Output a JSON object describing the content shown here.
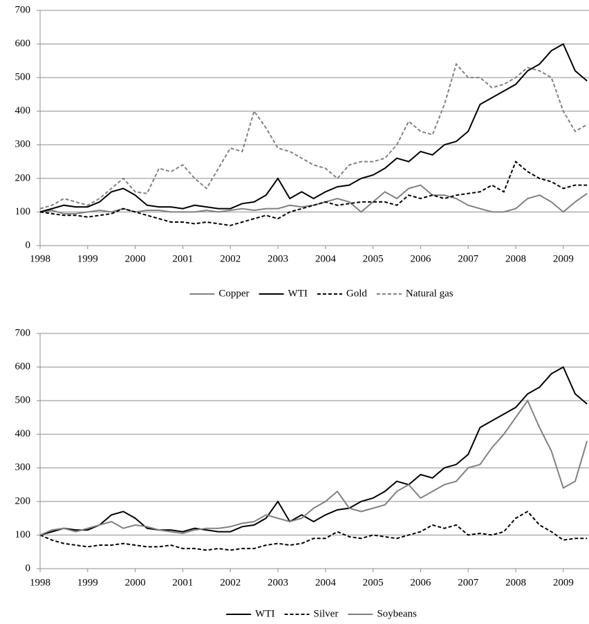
{
  "chart_data": [
    {
      "type": "line",
      "x": [
        1998,
        1998.25,
        1998.5,
        1998.75,
        1999,
        1999.25,
        1999.5,
        1999.75,
        2000,
        2000.25,
        2000.5,
        2000.75,
        2001,
        2001.25,
        2001.5,
        2001.75,
        2002,
        2002.25,
        2002.5,
        2002.75,
        2003,
        2003.25,
        2003.5,
        2003.75,
        2004,
        2004.25,
        2004.5,
        2004.75,
        2005,
        2005.25,
        2005.5,
        2005.75,
        2006,
        2006.25,
        2006.5,
        2006.75,
        2007,
        2007.25,
        2007.5,
        2007.75,
        2008,
        2008.25,
        2008.5,
        2008.75,
        2009,
        2009.25,
        2009.5
      ],
      "series": [
        {
          "name": "Copper",
          "color": "#808080",
          "dash": "solid",
          "values": [
            100,
            105,
            95,
            95,
            100,
            105,
            100,
            110,
            100,
            105,
            105,
            100,
            100,
            100,
            105,
            100,
            105,
            110,
            105,
            110,
            110,
            120,
            115,
            120,
            130,
            140,
            130,
            100,
            130,
            160,
            140,
            170,
            180,
            150,
            150,
            140,
            120,
            110,
            100,
            100,
            110,
            140,
            150,
            130,
            100,
            130,
            155
          ]
        },
        {
          "name": "WTI",
          "color": "#000000",
          "dash": "solid",
          "values": [
            100,
            110,
            120,
            115,
            115,
            130,
            160,
            170,
            150,
            120,
            115,
            115,
            110,
            120,
            115,
            110,
            110,
            125,
            130,
            150,
            200,
            140,
            160,
            140,
            160,
            175,
            180,
            200,
            210,
            230,
            260,
            250,
            280,
            270,
            300,
            310,
            340,
            420,
            440,
            460,
            480,
            520,
            540,
            580,
            600,
            520,
            490
          ]
        },
        {
          "name": "Gold",
          "color": "#000000",
          "dash": "dashed",
          "values": [
            100,
            95,
            90,
            90,
            85,
            90,
            95,
            110,
            100,
            90,
            80,
            70,
            70,
            65,
            70,
            65,
            60,
            70,
            80,
            90,
            80,
            100,
            110,
            120,
            130,
            120,
            125,
            130,
            130,
            130,
            120,
            150,
            140,
            150,
            140,
            150,
            155,
            160,
            180,
            160,
            250,
            220,
            200,
            190,
            170,
            180,
            180
          ]
        },
        {
          "name": "Natural gas",
          "color": "#808080",
          "dash": "dashed",
          "values": [
            110,
            120,
            140,
            130,
            120,
            140,
            170,
            200,
            160,
            155,
            230,
            220,
            240,
            200,
            170,
            230,
            290,
            280,
            400,
            350,
            290,
            280,
            260,
            240,
            230,
            200,
            240,
            250,
            250,
            260,
            300,
            370,
            340,
            330,
            420,
            540,
            500,
            500,
            470,
            480,
            500,
            530,
            520,
            500,
            400,
            340,
            360
          ]
        }
      ],
      "xlim": [
        1998,
        2009.54
      ],
      "ylim": [
        0,
        700
      ],
      "xticks": [
        1998,
        1999,
        2000,
        2001,
        2002,
        2003,
        2004,
        2005,
        2006,
        2007,
        2008,
        2009
      ],
      "yticks": [
        0,
        100,
        200,
        300,
        400,
        500,
        600,
        700
      ],
      "grid": true
    },
    {
      "type": "line",
      "x": [
        1998,
        1998.25,
        1998.5,
        1998.75,
        1999,
        1999.25,
        1999.5,
        1999.75,
        2000,
        2000.25,
        2000.5,
        2000.75,
        2001,
        2001.25,
        2001.5,
        2001.75,
        2002,
        2002.25,
        2002.5,
        2002.75,
        2003,
        2003.25,
        2003.5,
        2003.75,
        2004,
        2004.25,
        2004.5,
        2004.75,
        2005,
        2005.25,
        2005.5,
        2005.75,
        2006,
        2006.25,
        2006.5,
        2006.75,
        2007,
        2007.25,
        2007.5,
        2007.75,
        2008,
        2008.25,
        2008.5,
        2008.75,
        2009,
        2009.25,
        2009.5
      ],
      "series": [
        {
          "name": "WTI",
          "color": "#000000",
          "dash": "solid",
          "values": [
            100,
            110,
            120,
            115,
            115,
            130,
            160,
            170,
            150,
            120,
            115,
            115,
            110,
            120,
            115,
            110,
            110,
            125,
            130,
            150,
            200,
            140,
            160,
            140,
            160,
            175,
            180,
            200,
            210,
            230,
            260,
            250,
            280,
            270,
            300,
            310,
            340,
            420,
            440,
            460,
            480,
            520,
            540,
            580,
            600,
            520,
            490
          ]
        },
        {
          "name": "Silver",
          "color": "#000000",
          "dash": "dashed",
          "values": [
            100,
            85,
            75,
            70,
            65,
            70,
            70,
            75,
            70,
            65,
            65,
            70,
            60,
            60,
            55,
            60,
            55,
            60,
            60,
            70,
            75,
            70,
            75,
            90,
            90,
            110,
            95,
            90,
            100,
            95,
            90,
            100,
            110,
            130,
            120,
            130,
            100,
            105,
            100,
            110,
            150,
            170,
            130,
            110,
            85,
            90,
            90
          ]
        },
        {
          "name": "Soybeans",
          "color": "#808080",
          "dash": "solid",
          "values": [
            100,
            115,
            120,
            110,
            120,
            130,
            140,
            120,
            130,
            125,
            115,
            110,
            105,
            115,
            120,
            120,
            125,
            135,
            140,
            160,
            150,
            140,
            150,
            180,
            200,
            230,
            180,
            170,
            180,
            190,
            230,
            250,
            210,
            230,
            250,
            260,
            300,
            310,
            360,
            400,
            450,
            500,
            420,
            350,
            240,
            260,
            380
          ]
        }
      ],
      "xlim": [
        1998,
        2009.54
      ],
      "ylim": [
        0,
        700
      ],
      "xticks": [
        1998,
        1999,
        2000,
        2001,
        2002,
        2003,
        2004,
        2005,
        2006,
        2007,
        2008,
        2009
      ],
      "yticks": [
        0,
        100,
        200,
        300,
        400,
        500,
        600,
        700
      ],
      "grid": true
    }
  ]
}
